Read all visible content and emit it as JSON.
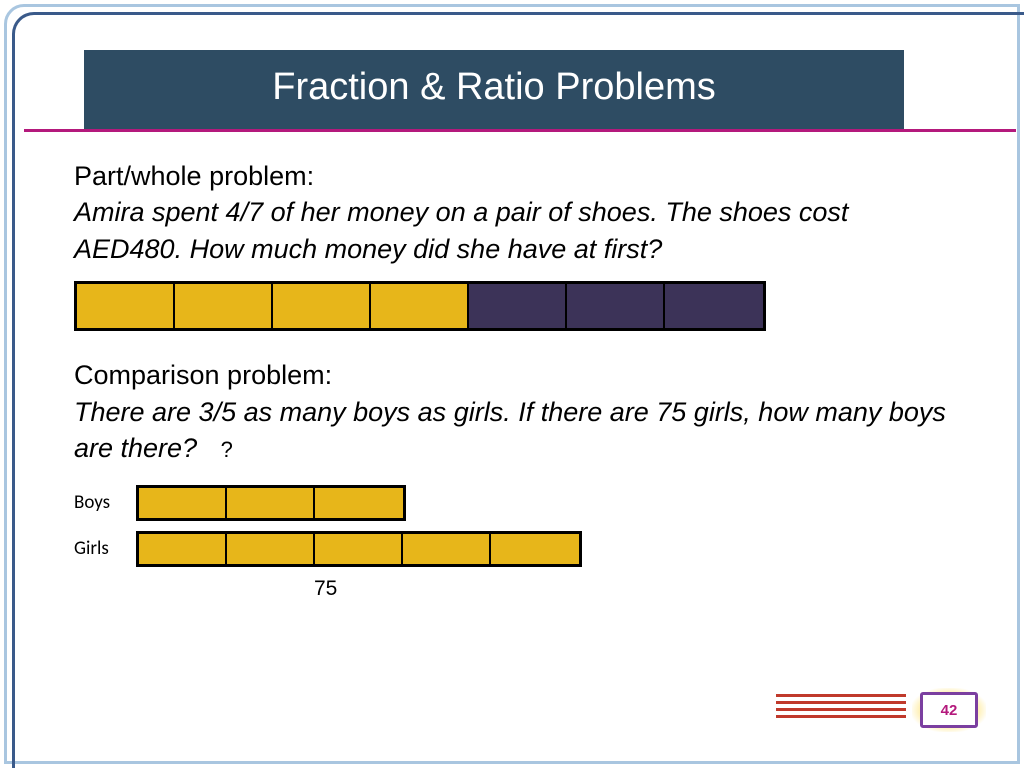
{
  "colors": {
    "title_bg": "#2e4c63",
    "title_text": "#ffffff",
    "rule": "#b4197c",
    "seg_yellow": "#e7b61a",
    "seg_dark": "#3c3358",
    "comp_yellow": "#e7b61a",
    "corner_line": "#c0392b",
    "page_num": "#b4197c"
  },
  "title": "Fraction & Ratio Problems",
  "problem1": {
    "heading": "Part/whole problem:",
    "text": "Amira spent 4/7 of her money on a pair of shoes. The shoes cost AED480. How much money did she have at first?",
    "bar": {
      "total_segments": 7,
      "yellow_segments": 4,
      "seg_width": 98,
      "seg_height": 44
    }
  },
  "problem2": {
    "heading": "Comparison problem:",
    "text": "There are 3/5 as many boys as girls. If there are 75 girls, how many boys are there?",
    "qmark": "?",
    "rows": [
      {
        "label": "Boys",
        "segments": 3,
        "seg_width": 88,
        "seg_height": 30
      },
      {
        "label": "Girls",
        "segments": 5,
        "seg_width": 88,
        "seg_height": 30
      }
    ],
    "bottom_label": "75"
  },
  "page_number": "42"
}
